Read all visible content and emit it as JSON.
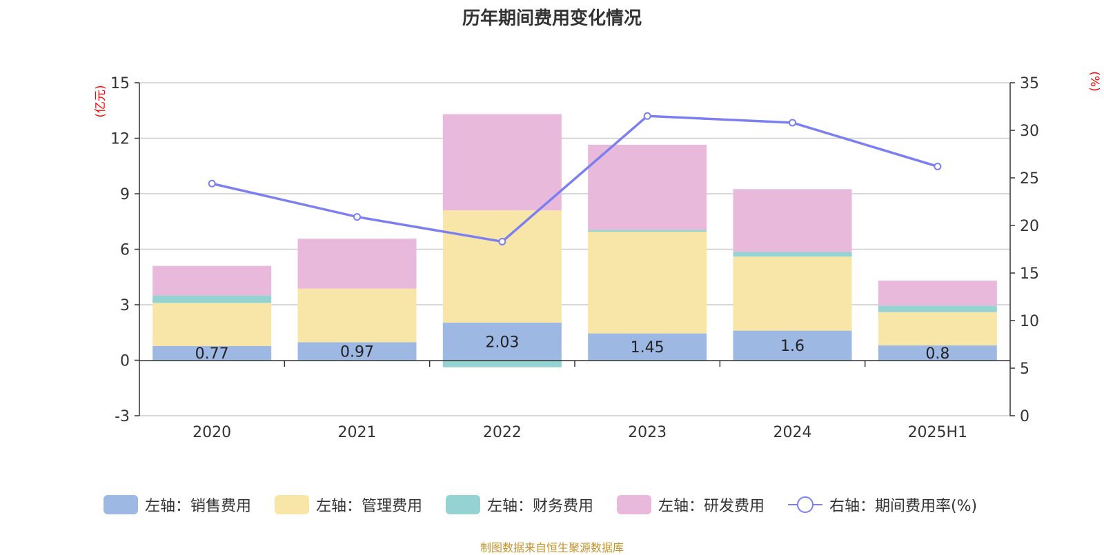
{
  "chart_data": {
    "type": "bar",
    "title": "历年期间费用变化情况",
    "categories": [
      "2020",
      "2021",
      "2022",
      "2023",
      "2024",
      "2025H1"
    ],
    "left_axis": {
      "unit": "(亿元)",
      "ylim": [
        -3,
        15
      ],
      "ticks": [
        "15",
        "12",
        "9",
        "6",
        "3",
        "0",
        "-3"
      ]
    },
    "right_axis": {
      "unit": "(%)",
      "ylim": [
        0,
        35
      ],
      "ticks": [
        "35",
        "30",
        "25",
        "20",
        "15",
        "10",
        "5",
        "0"
      ]
    },
    "stacked": true,
    "series": [
      {
        "name": "左轴：销售费用",
        "type": "bar",
        "axis": "left",
        "color": "#9db8e3",
        "values": [
          0.77,
          0.97,
          2.03,
          1.45,
          1.6,
          0.8
        ],
        "labels": [
          "0.77",
          "0.97",
          "2.03",
          "1.45",
          "1.6",
          "0.8"
        ]
      },
      {
        "name": "左轴：管理费用",
        "type": "bar",
        "axis": "left",
        "color": "#f8e6a8",
        "values": [
          2.33,
          2.9,
          6.07,
          5.5,
          4.0,
          1.8
        ]
      },
      {
        "name": "左轴：财务费用",
        "type": "bar",
        "axis": "left",
        "color": "#95d3d3",
        "values": [
          0.4,
          0.0,
          -0.38,
          0.1,
          0.25,
          0.35
        ]
      },
      {
        "name": "左轴：研发费用",
        "type": "bar",
        "axis": "left",
        "color": "#e8b9da",
        "values": [
          1.6,
          2.7,
          5.2,
          4.6,
          3.4,
          1.35
        ]
      },
      {
        "name": "右轴：期间费用率(%)",
        "type": "line",
        "axis": "right",
        "color": "#7b7fef",
        "values": [
          24.4,
          20.9,
          18.3,
          31.5,
          30.8,
          26.2
        ]
      }
    ],
    "grid": true,
    "legend_position": "bottom"
  },
  "source_note": "制图数据来自恒生聚源数据库"
}
